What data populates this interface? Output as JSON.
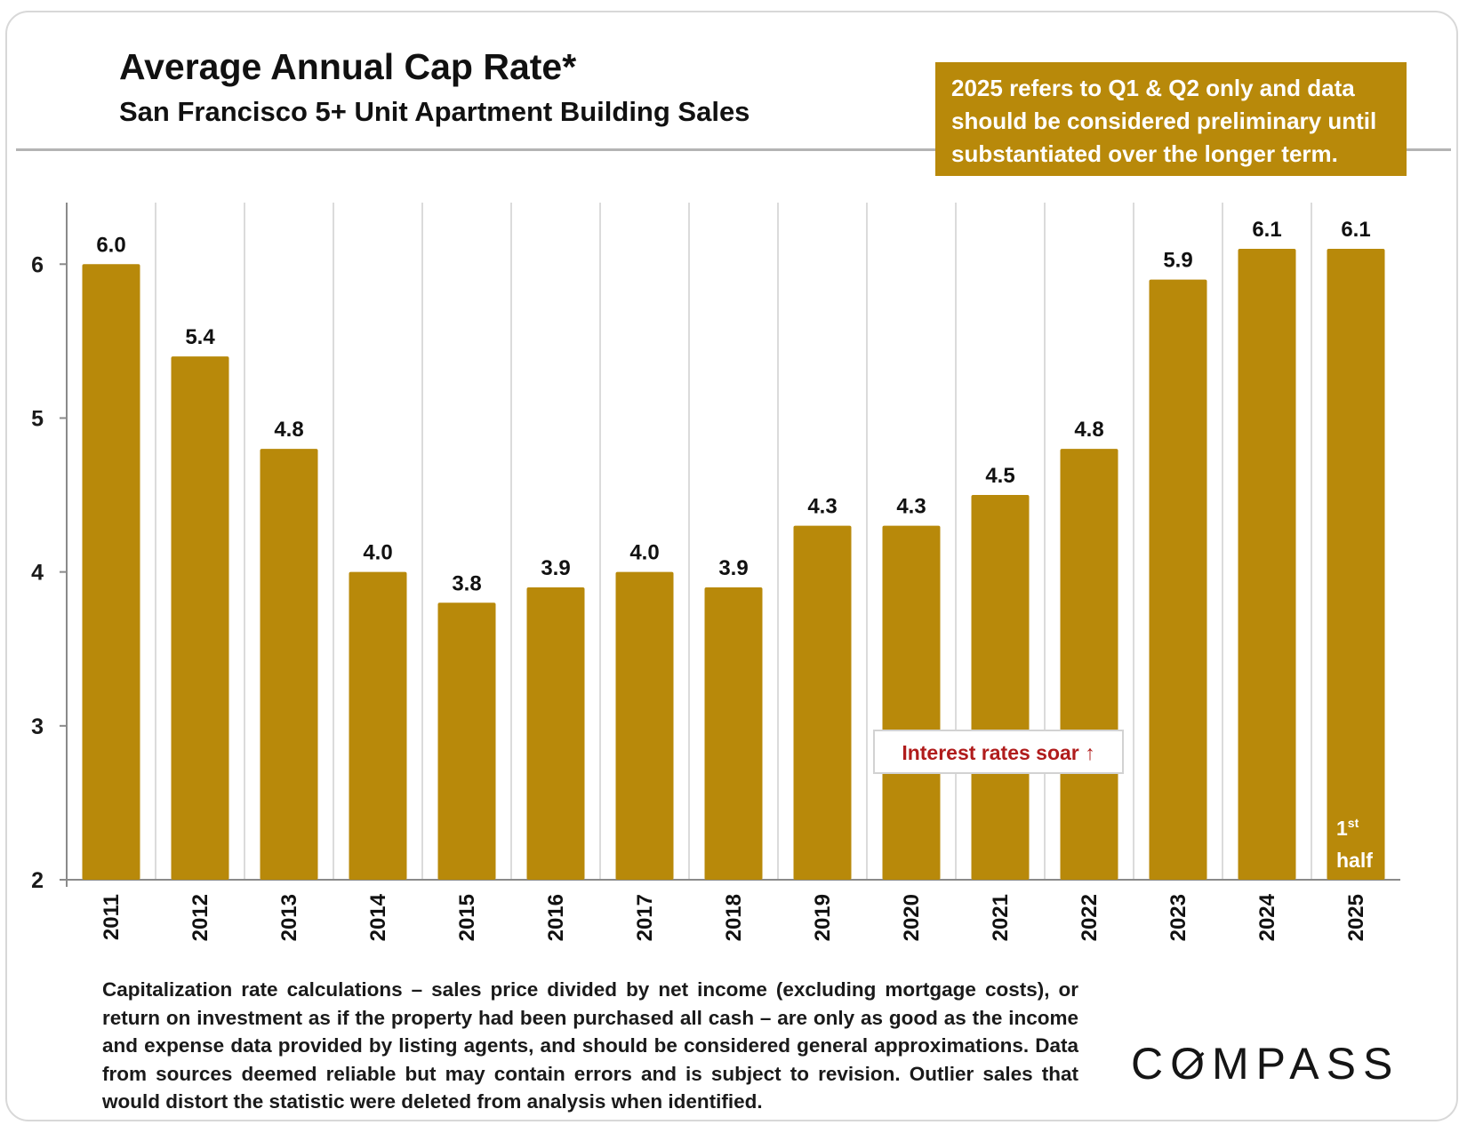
{
  "header": {
    "title": "Average Annual Cap Rate*",
    "subtitle": "San Francisco 5+ Unit Apartment Building Sales"
  },
  "note_box": {
    "lines": [
      "2025 refers to Q1 & Q2 only and data",
      "should be considered preliminary until",
      "substantiated over the longer term."
    ]
  },
  "chart_data": {
    "type": "bar",
    "categories": [
      "2011",
      "2012",
      "2013",
      "2014",
      "2015",
      "2016",
      "2017",
      "2018",
      "2019",
      "2020",
      "2021",
      "2022",
      "2023",
      "2024",
      "2025"
    ],
    "values": [
      6.0,
      5.4,
      4.8,
      4.0,
      3.8,
      3.9,
      4.0,
      3.9,
      4.3,
      4.3,
      4.5,
      4.8,
      5.9,
      6.1,
      6.1
    ],
    "data_labels": [
      "6.0",
      "5.4",
      "4.8",
      "4.0",
      "3.8",
      "3.9",
      "4.0",
      "3.9",
      "4.3",
      "4.3",
      "4.5",
      "4.8",
      "5.9",
      "6.1",
      "6.1"
    ],
    "ylim": [
      2,
      6.4
    ],
    "yticks": [
      2,
      3,
      4,
      5,
      6
    ],
    "bar_color": "#b8890a",
    "grid": "vertical",
    "annotations": {
      "interest": "Interest rates soar ↑",
      "first_half": {
        "sup_num": "1",
        "sup": "st",
        "word": "half"
      }
    },
    "annotation_color": "#b01c1c"
  },
  "footnote": "Capitalization rate calculations – sales price divided by net income (excluding mortgage costs), or return on investment as if the property had been purchased all cash – are only as good as the income and expense data provided by listing agents, and should be considered general approximations. Data from sources deemed reliable but may contain errors and is subject to revision. Outlier sales that would distort the statistic were deleted from analysis when identified.",
  "logo": {
    "pre": "C",
    "o": "O",
    "post": "MPASS"
  }
}
